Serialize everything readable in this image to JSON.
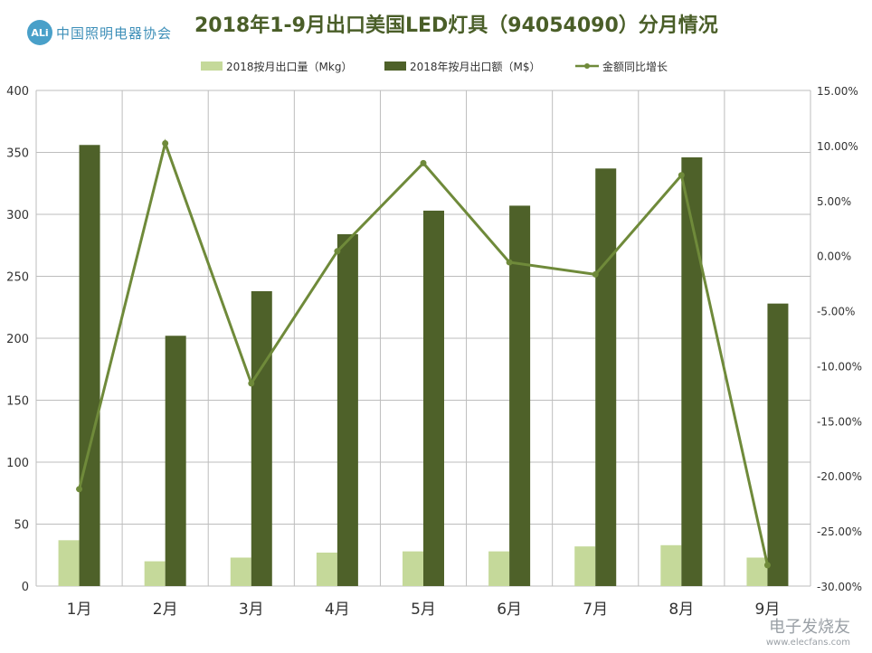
{
  "logo": {
    "mark": "ALi",
    "text": "中国照明电器协会"
  },
  "watermark": {
    "main": "电子发烧友",
    "sub": "www.elecfans.com"
  },
  "chart_data": {
    "type": "bar",
    "title": "2018年1-9月出口美国LED灯具（94054090）分月情况",
    "categories": [
      "1月",
      "2月",
      "3月",
      "4月",
      "5月",
      "6月",
      "7月",
      "8月",
      "9月"
    ],
    "series": [
      {
        "name": "2018按月出口量（Mkg）",
        "type": "bar",
        "axis": "left",
        "color": "#c5d99a",
        "values": [
          37,
          20,
          23,
          27,
          28,
          28,
          32,
          33,
          23
        ]
      },
      {
        "name": "2018年按月出口额（M$）",
        "type": "bar",
        "axis": "left",
        "color": "#4e6129",
        "values": [
          356,
          202,
          238,
          284,
          303,
          307,
          337,
          346,
          228
        ]
      },
      {
        "name": "金额同比增长",
        "type": "line",
        "axis": "right",
        "color": "#6f8a3a",
        "values": [
          -21.2,
          10.2,
          -11.6,
          0.4,
          8.4,
          -0.6,
          -1.7,
          7.3,
          -28.1
        ]
      }
    ],
    "ylim": [
      0,
      400
    ],
    "yticks": [
      0,
      50,
      100,
      150,
      200,
      250,
      300,
      350,
      400
    ],
    "y2lim": [
      -30,
      15
    ],
    "y2ticks": [
      "-30.00%",
      "-25.00%",
      "-20.00%",
      "-15.00%",
      "-10.00%",
      "-5.00%",
      "0.00%",
      "5.00%",
      "10.00%",
      "15.00%"
    ],
    "legend_position": "top",
    "grid": true
  }
}
